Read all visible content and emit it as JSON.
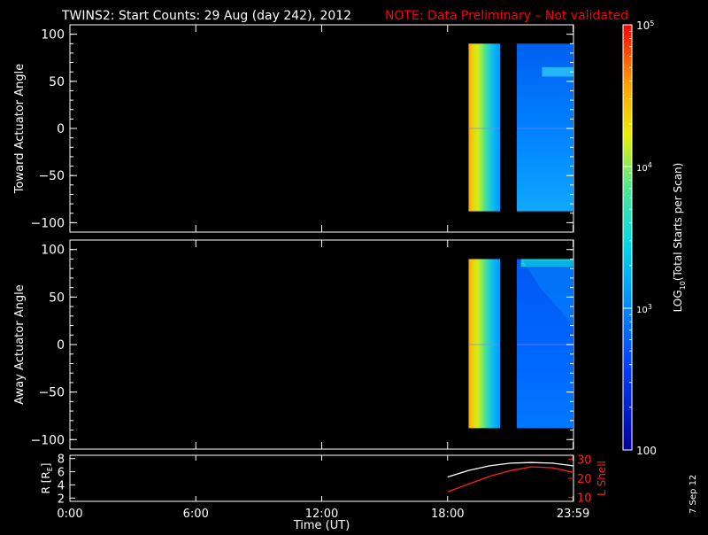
{
  "title": {
    "main": "TWINS2: Start Counts: 29 Aug (day 242), 2012",
    "note": "NOTE: Data Preliminary – Not validated"
  },
  "colors": {
    "background": "#000000",
    "foreground": "#ffffff",
    "note": "#ff0000",
    "lshell": "#ff2020"
  },
  "side_stamp": "7 Sep 12",
  "chart_data": [
    {
      "type": "heatmap",
      "panel": "top",
      "ylabel": "Toward Actuator Angle",
      "xlim": [
        0,
        24
      ],
      "ylim": [
        -110,
        110
      ],
      "yticks": [
        100,
        50,
        0,
        -50,
        -100
      ],
      "ytick_labels": [
        "100",
        "50",
        "0",
        "−50",
        "−100"
      ],
      "data_blocks": [
        {
          "t_start": 19.0,
          "t_end": 20.5,
          "angle_min": -88,
          "angle_max": 90,
          "log_counts_start": 3.9,
          "log_counts_end": 3.1
        },
        {
          "t_start": 21.3,
          "t_end": 24.0,
          "angle_min": -88,
          "angle_max": 90,
          "log_counts": 2.6,
          "feature": "enhanced counts near +60 deg after ~22:30"
        }
      ]
    },
    {
      "type": "heatmap",
      "panel": "middle",
      "ylabel": "Away Actuator Angle",
      "xlim": [
        0,
        24
      ],
      "ylim": [
        -110,
        110
      ],
      "yticks": [
        100,
        50,
        0,
        -50,
        -100
      ],
      "ytick_labels": [
        "100",
        "50",
        "0",
        "−50",
        "−100"
      ],
      "data_blocks": [
        {
          "t_start": 19.0,
          "t_end": 20.5,
          "angle_min": -88,
          "angle_max": 90,
          "log_counts_start": 3.9,
          "log_counts_end": 3.1
        },
        {
          "t_start": 21.3,
          "t_end": 24.0,
          "angle_min": -88,
          "angle_max": 90,
          "log_counts": 2.5,
          "feature": "enhanced counts near +90 deg after ~21:30"
        }
      ]
    },
    {
      "type": "line",
      "panel": "bottom",
      "ylabel_left": "R [R",
      "ylabel_left_sub": "E",
      "ylabel_left_close": "]",
      "ylabel_right": "L Shell",
      "xlabel": "Time (UT)",
      "xlim": [
        0,
        24
      ],
      "xticks": [
        0,
        6,
        12,
        18,
        23.983
      ],
      "xtick_labels": [
        "0:00",
        "6:00",
        "12:00",
        "18:00",
        "23:59"
      ],
      "ylim_left": [
        1.5,
        8.5
      ],
      "yticks_left": [
        2,
        4,
        6,
        8
      ],
      "ylim_right": [
        8,
        32
      ],
      "yticks_right": [
        10,
        20,
        30
      ],
      "series": [
        {
          "axis": "left",
          "color": "#ffffff",
          "x": [
            18.0,
            19.0,
            20.0,
            21.0,
            22.0,
            23.0,
            24.0
          ],
          "y": [
            5.2,
            6.2,
            6.9,
            7.3,
            7.4,
            7.3,
            6.9
          ]
        },
        {
          "axis": "right",
          "color": "#ff2020",
          "x": [
            18.0,
            19.0,
            20.0,
            21.0,
            22.0,
            23.0,
            24.0
          ],
          "y": [
            13,
            17,
            21,
            24,
            26,
            25.5,
            23
          ]
        }
      ]
    }
  ],
  "colorbar": {
    "label_main": "LOG",
    "label_sub": "10",
    "label_rest": "(Total Starts per Scan)",
    "range_log": [
      2,
      5
    ],
    "tick_values_log": [
      2,
      3,
      4,
      5
    ],
    "tick_labels": [
      "100",
      "10",
      "10",
      "10"
    ],
    "tick_superscripts": [
      "",
      "3",
      "4",
      "5"
    ]
  }
}
